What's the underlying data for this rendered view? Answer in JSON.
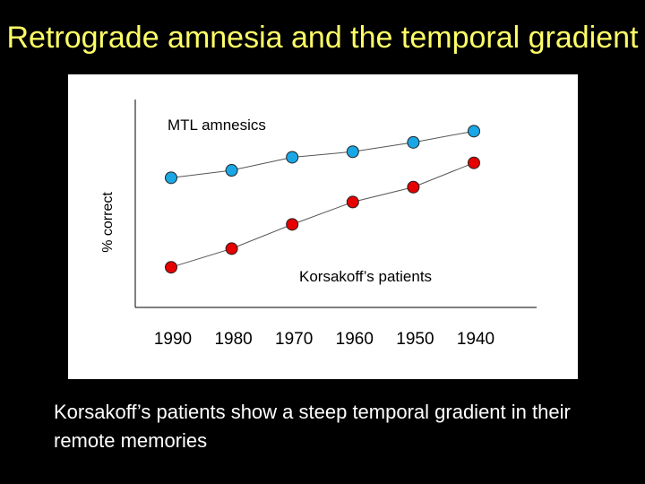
{
  "slide": {
    "title": "Retrograde amnesia and the temporal gradient",
    "caption": "Korsakoff’s patients show a steep temporal gradient in their remote memories"
  },
  "colors": {
    "background": "#000000",
    "title": "#ffff66",
    "text": "#ffffff",
    "mtl_series": "#1aa7e6",
    "korsakoff_series": "#e60000"
  },
  "chart_data": {
    "type": "line",
    "title": "",
    "xlabel": "",
    "ylabel": "% correct",
    "categories": [
      "1990",
      "1980",
      "1970",
      "1960",
      "1950",
      "1940"
    ],
    "ylim": [
      0,
      100
    ],
    "grid": false,
    "series": [
      {
        "name": "MTL amnesics",
        "color": "#1aa7e6",
        "values": [
          58,
          62,
          69,
          72,
          77,
          83
        ]
      },
      {
        "name": "Korsakoff’s patients",
        "color": "#e60000",
        "values": [
          10,
          20,
          33,
          45,
          53,
          66
        ]
      }
    ]
  }
}
